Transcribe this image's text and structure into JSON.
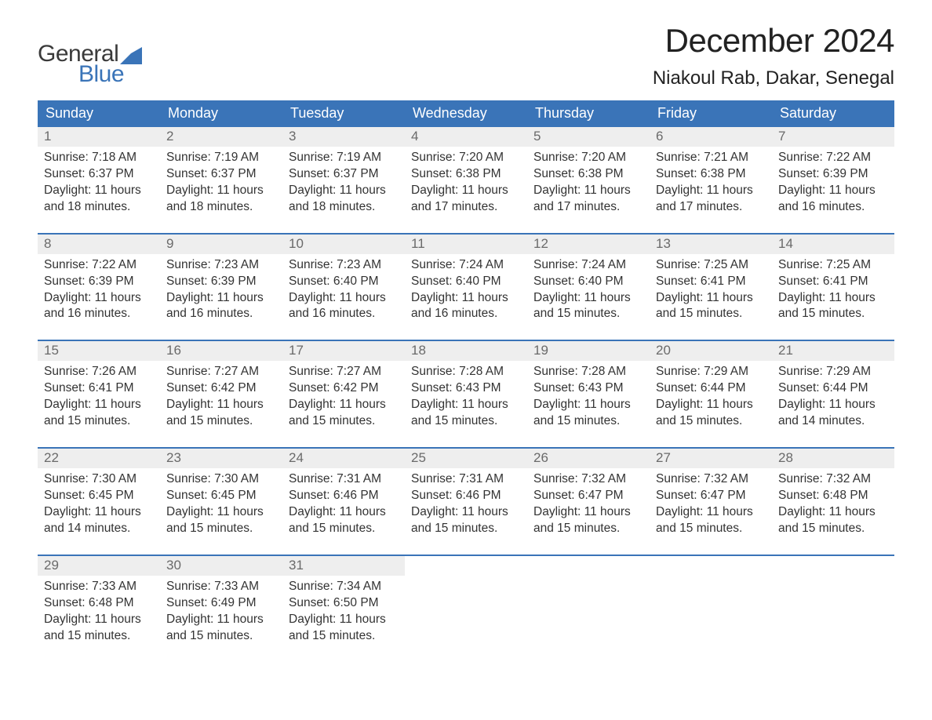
{
  "brand": {
    "word1": "General",
    "word2": "Blue",
    "mark_color": "#3a74b8",
    "text_color_dark": "#3a3a3a"
  },
  "title": "December 2024",
  "location": "Niakoul Rab, Dakar, Senegal",
  "colors": {
    "header_bg": "#3a74b8",
    "header_text": "#ffffff",
    "daynum_bg": "#eeeeee",
    "daynum_text": "#6a6a6a",
    "body_text": "#333333",
    "week_divider": "#3a74b8",
    "page_bg": "#ffffff"
  },
  "weekdays": [
    "Sunday",
    "Monday",
    "Tuesday",
    "Wednesday",
    "Thursday",
    "Friday",
    "Saturday"
  ],
  "labels": {
    "sunrise": "Sunrise",
    "sunset": "Sunset",
    "daylight": "Daylight"
  },
  "weeks": [
    [
      {
        "n": "1",
        "sunrise": "7:18 AM",
        "sunset": "6:37 PM",
        "dl1": "11 hours",
        "dl2": "and 18 minutes."
      },
      {
        "n": "2",
        "sunrise": "7:19 AM",
        "sunset": "6:37 PM",
        "dl1": "11 hours",
        "dl2": "and 18 minutes."
      },
      {
        "n": "3",
        "sunrise": "7:19 AM",
        "sunset": "6:37 PM",
        "dl1": "11 hours",
        "dl2": "and 18 minutes."
      },
      {
        "n": "4",
        "sunrise": "7:20 AM",
        "sunset": "6:38 PM",
        "dl1": "11 hours",
        "dl2": "and 17 minutes."
      },
      {
        "n": "5",
        "sunrise": "7:20 AM",
        "sunset": "6:38 PM",
        "dl1": "11 hours",
        "dl2": "and 17 minutes."
      },
      {
        "n": "6",
        "sunrise": "7:21 AM",
        "sunset": "6:38 PM",
        "dl1": "11 hours",
        "dl2": "and 17 minutes."
      },
      {
        "n": "7",
        "sunrise": "7:22 AM",
        "sunset": "6:39 PM",
        "dl1": "11 hours",
        "dl2": "and 16 minutes."
      }
    ],
    [
      {
        "n": "8",
        "sunrise": "7:22 AM",
        "sunset": "6:39 PM",
        "dl1": "11 hours",
        "dl2": "and 16 minutes."
      },
      {
        "n": "9",
        "sunrise": "7:23 AM",
        "sunset": "6:39 PM",
        "dl1": "11 hours",
        "dl2": "and 16 minutes."
      },
      {
        "n": "10",
        "sunrise": "7:23 AM",
        "sunset": "6:40 PM",
        "dl1": "11 hours",
        "dl2": "and 16 minutes."
      },
      {
        "n": "11",
        "sunrise": "7:24 AM",
        "sunset": "6:40 PM",
        "dl1": "11 hours",
        "dl2": "and 16 minutes."
      },
      {
        "n": "12",
        "sunrise": "7:24 AM",
        "sunset": "6:40 PM",
        "dl1": "11 hours",
        "dl2": "and 15 minutes."
      },
      {
        "n": "13",
        "sunrise": "7:25 AM",
        "sunset": "6:41 PM",
        "dl1": "11 hours",
        "dl2": "and 15 minutes."
      },
      {
        "n": "14",
        "sunrise": "7:25 AM",
        "sunset": "6:41 PM",
        "dl1": "11 hours",
        "dl2": "and 15 minutes."
      }
    ],
    [
      {
        "n": "15",
        "sunrise": "7:26 AM",
        "sunset": "6:41 PM",
        "dl1": "11 hours",
        "dl2": "and 15 minutes."
      },
      {
        "n": "16",
        "sunrise": "7:27 AM",
        "sunset": "6:42 PM",
        "dl1": "11 hours",
        "dl2": "and 15 minutes."
      },
      {
        "n": "17",
        "sunrise": "7:27 AM",
        "sunset": "6:42 PM",
        "dl1": "11 hours",
        "dl2": "and 15 minutes."
      },
      {
        "n": "18",
        "sunrise": "7:28 AM",
        "sunset": "6:43 PM",
        "dl1": "11 hours",
        "dl2": "and 15 minutes."
      },
      {
        "n": "19",
        "sunrise": "7:28 AM",
        "sunset": "6:43 PM",
        "dl1": "11 hours",
        "dl2": "and 15 minutes."
      },
      {
        "n": "20",
        "sunrise": "7:29 AM",
        "sunset": "6:44 PM",
        "dl1": "11 hours",
        "dl2": "and 15 minutes."
      },
      {
        "n": "21",
        "sunrise": "7:29 AM",
        "sunset": "6:44 PM",
        "dl1": "11 hours",
        "dl2": "and 14 minutes."
      }
    ],
    [
      {
        "n": "22",
        "sunrise": "7:30 AM",
        "sunset": "6:45 PM",
        "dl1": "11 hours",
        "dl2": "and 14 minutes."
      },
      {
        "n": "23",
        "sunrise": "7:30 AM",
        "sunset": "6:45 PM",
        "dl1": "11 hours",
        "dl2": "and 15 minutes."
      },
      {
        "n": "24",
        "sunrise": "7:31 AM",
        "sunset": "6:46 PM",
        "dl1": "11 hours",
        "dl2": "and 15 minutes."
      },
      {
        "n": "25",
        "sunrise": "7:31 AM",
        "sunset": "6:46 PM",
        "dl1": "11 hours",
        "dl2": "and 15 minutes."
      },
      {
        "n": "26",
        "sunrise": "7:32 AM",
        "sunset": "6:47 PM",
        "dl1": "11 hours",
        "dl2": "and 15 minutes."
      },
      {
        "n": "27",
        "sunrise": "7:32 AM",
        "sunset": "6:47 PM",
        "dl1": "11 hours",
        "dl2": "and 15 minutes."
      },
      {
        "n": "28",
        "sunrise": "7:32 AM",
        "sunset": "6:48 PM",
        "dl1": "11 hours",
        "dl2": "and 15 minutes."
      }
    ],
    [
      {
        "n": "29",
        "sunrise": "7:33 AM",
        "sunset": "6:48 PM",
        "dl1": "11 hours",
        "dl2": "and 15 minutes."
      },
      {
        "n": "30",
        "sunrise": "7:33 AM",
        "sunset": "6:49 PM",
        "dl1": "11 hours",
        "dl2": "and 15 minutes."
      },
      {
        "n": "31",
        "sunrise": "7:34 AM",
        "sunset": "6:50 PM",
        "dl1": "11 hours",
        "dl2": "and 15 minutes."
      },
      null,
      null,
      null,
      null
    ]
  ]
}
